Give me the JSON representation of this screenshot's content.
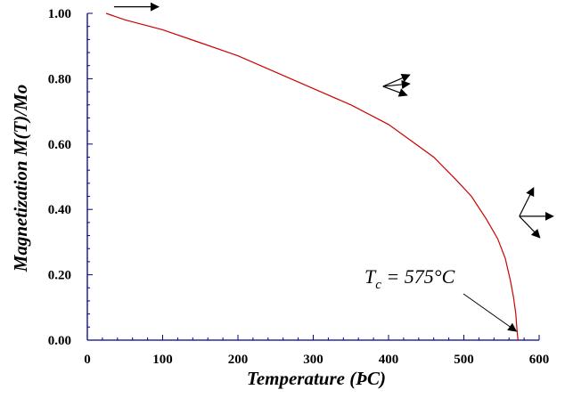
{
  "chart_data": {
    "type": "line",
    "title": "",
    "xlabel": "Temperature (ÞC)",
    "ylabel": "Magnetization M(T)/Mo",
    "xlim": [
      0,
      600
    ],
    "ylim": [
      0,
      1.0
    ],
    "x_ticks": [
      "0",
      "100",
      "200",
      "300",
      "400",
      "500",
      "600"
    ],
    "y_ticks": [
      "0.00",
      "0.20",
      "0.40",
      "0.60",
      "0.80",
      "1.00"
    ],
    "grid": false,
    "legend": "none",
    "series": [
      {
        "color": "#cc0000",
        "x": [
          25,
          50,
          100,
          150,
          200,
          250,
          300,
          350,
          400,
          430,
          460,
          490,
          510,
          530,
          545,
          555,
          562,
          566,
          569,
          570,
          571,
          572
        ],
        "y": [
          1.0,
          0.98,
          0.95,
          0.91,
          0.87,
          0.82,
          0.77,
          0.72,
          0.66,
          0.61,
          0.56,
          0.49,
          0.44,
          0.37,
          0.31,
          0.25,
          0.18,
          0.13,
          0.08,
          0.05,
          0.02,
          0.0
        ]
      }
    ],
    "annotation": {
      "text_main": "T",
      "text_sub": "c",
      "text_rest": " = 575°C",
      "x": 572,
      "y": 0.0
    },
    "spin_glyphs": [
      {
        "name": "spin-arrow-aligned",
        "x": 65,
        "y": 1.02
      },
      {
        "name": "spin-arrows-partially-ordered",
        "x": 395,
        "y": 0.79
      },
      {
        "name": "spin-arrows-disordered",
        "x": 595,
        "y": 0.39
      }
    ],
    "colors": {
      "axis": "#00008b",
      "line": "#cc0000",
      "text": "#000000"
    }
  }
}
